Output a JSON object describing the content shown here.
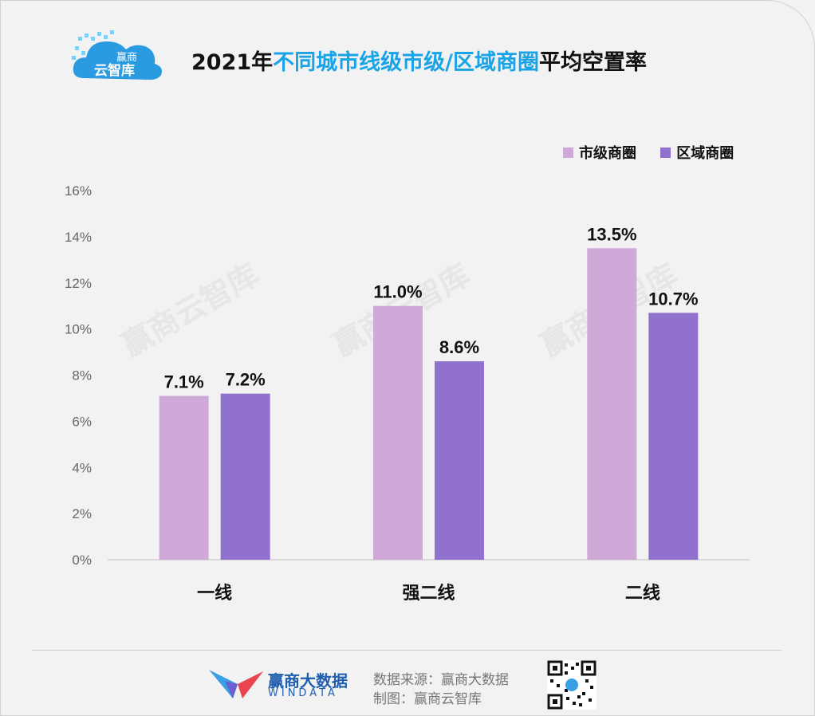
{
  "header": {
    "title_prefix": "2021年",
    "title_highlight": "不同城市线级市级/区域商圈",
    "title_suffix": "平均空置率",
    "logo_text_line1": "赢商",
    "logo_text_line2": "云智库"
  },
  "watermark": "赢商云智库",
  "colors": {
    "series1": "#cfaad8",
    "series2": "#9071cd",
    "title_highlight": "#1aa4e8"
  },
  "chart_data": {
    "type": "bar",
    "categories": [
      "一线",
      "强二线",
      "二线"
    ],
    "series": [
      {
        "name": "市级商圈",
        "values": [
          7.1,
          11.0,
          13.5
        ],
        "labels": [
          "7.1%",
          "11.0%",
          "13.5%"
        ]
      },
      {
        "name": "区域商圈",
        "values": [
          7.2,
          8.6,
          10.7
        ],
        "labels": [
          "7.2%",
          "8.6%",
          "10.7%"
        ]
      }
    ],
    "ylim": [
      0,
      16
    ],
    "yticks": [
      "0%",
      "2%",
      "4%",
      "6%",
      "8%",
      "10%",
      "12%",
      "14%",
      "16%"
    ],
    "legend": "top-right",
    "grid": false
  },
  "footer": {
    "brand_name": "赢商大数据",
    "brand_en": "WINDATA",
    "source_line": "数据来源：赢商大数据",
    "chart_by_line": "制图：赢商云智库"
  }
}
